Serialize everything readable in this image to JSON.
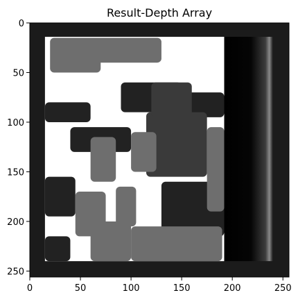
{
  "chart_data": {
    "type": "heatmap",
    "title": "Result-Depth Array",
    "xlabel": "",
    "ylabel": "",
    "image_size": [
      256,
      256
    ],
    "xlim": [
      0,
      256
    ],
    "ylim": [
      256,
      0
    ],
    "x_ticks": [
      0,
      50,
      100,
      150,
      200,
      250
    ],
    "y_ticks": [
      0,
      50,
      100,
      150,
      200,
      250
    ],
    "grid": false,
    "colormap": "gray",
    "colors": {
      "black": "#000000",
      "dark": "#222222",
      "frame": "#1b1b1b",
      "mid_dark": "#3a3a3a",
      "mid": "#6e6e6e",
      "light": "#8a8a8a",
      "white": "#ffffff"
    },
    "regions": [
      {
        "shade": "frame",
        "x": [
          0,
          256
        ],
        "y": [
          0,
          256
        ]
      },
      {
        "shade": "light",
        "x": [
          15,
          192
        ],
        "y": [
          14,
          240
        ]
      },
      {
        "shade": "white",
        "x": [
          15,
          192
        ],
        "y": [
          14,
          240
        ]
      },
      {
        "shade": "mid",
        "x": [
          20,
          70
        ],
        "y": [
          15,
          50
        ]
      },
      {
        "shade": "mid",
        "x": [
          60,
          130
        ],
        "y": [
          15,
          40
        ]
      },
      {
        "shade": "dark",
        "x": [
          90,
          150
        ],
        "y": [
          60,
          90
        ]
      },
      {
        "shade": "dark",
        "x": [
          150,
          192
        ],
        "y": [
          70,
          95
        ]
      },
      {
        "shade": "dark",
        "x": [
          15,
          60
        ],
        "y": [
          80,
          100
        ]
      },
      {
        "shade": "dark",
        "x": [
          40,
          100
        ],
        "y": [
          105,
          130
        ]
      },
      {
        "shade": "mid_dark",
        "x": [
          115,
          175
        ],
        "y": [
          90,
          155
        ]
      },
      {
        "shade": "mid_dark",
        "x": [
          120,
          160
        ],
        "y": [
          60,
          95
        ]
      },
      {
        "shade": "mid",
        "x": [
          60,
          85
        ],
        "y": [
          115,
          160
        ]
      },
      {
        "shade": "mid",
        "x": [
          100,
          125
        ],
        "y": [
          110,
          150
        ]
      },
      {
        "shade": "dark",
        "x": [
          15,
          45
        ],
        "y": [
          155,
          195
        ]
      },
      {
        "shade": "mid",
        "x": [
          45,
          75
        ],
        "y": [
          170,
          215
        ]
      },
      {
        "shade": "mid",
        "x": [
          85,
          105
        ],
        "y": [
          165,
          205
        ]
      },
      {
        "shade": "dark",
        "x": [
          130,
          192
        ],
        "y": [
          160,
          215
        ]
      },
      {
        "shade": "mid",
        "x": [
          175,
          192
        ],
        "y": [
          105,
          190
        ]
      },
      {
        "shade": "dark",
        "x": [
          15,
          40
        ],
        "y": [
          215,
          240
        ]
      },
      {
        "shade": "mid",
        "x": [
          100,
          190
        ],
        "y": [
          205,
          240
        ]
      },
      {
        "shade": "mid",
        "x": [
          60,
          100
        ],
        "y": [
          200,
          240
        ]
      },
      {
        "shade": "black",
        "x": [
          192,
          240
        ],
        "y": [
          14,
          240
        ]
      }
    ]
  }
}
